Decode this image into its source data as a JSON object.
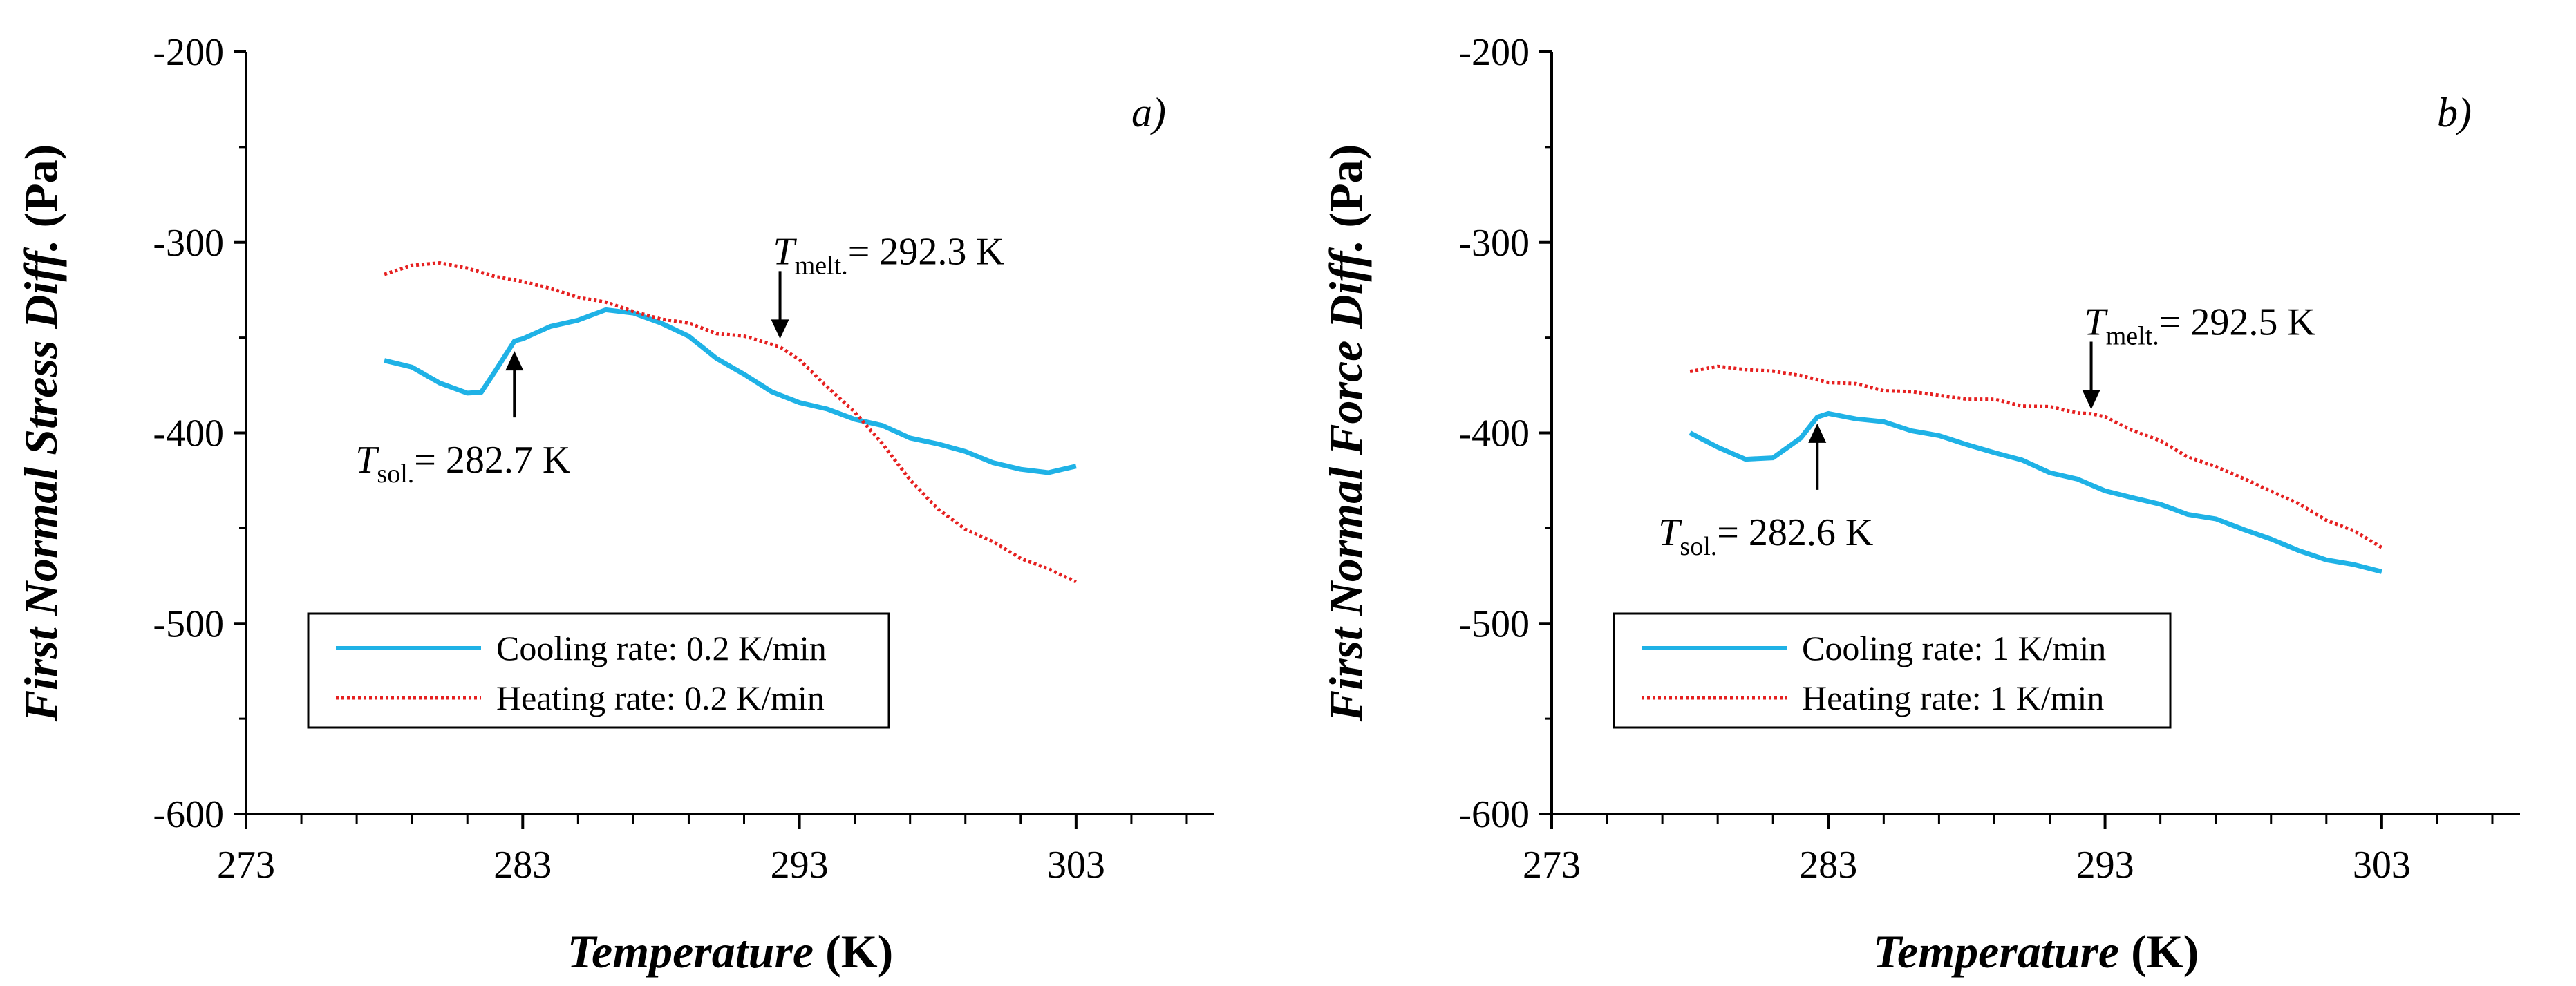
{
  "chart_data": [
    {
      "type": "line",
      "panel_label": "a)",
      "xlabel": "Temperature",
      "xlabel_unit": "(K)",
      "ylabel": "First Normal Stress Diff.",
      "ylabel_unit": "(Pa)",
      "xlim": [
        273,
        308
      ],
      "ylim": [
        -600,
        -200
      ],
      "xticks": [
        "273",
        "283",
        "293",
        "303"
      ],
      "yticks": [
        "-200",
        "-300",
        "-400",
        "-500",
        "-600"
      ],
      "grid": false,
      "legend_position": "bottom-left",
      "colors": {
        "cooling": "#1fb2e6",
        "heating": "#e62020"
      },
      "series": [
        {
          "name": "Cooling rate: 0.2 K/min",
          "style": "solid",
          "x": [
            278,
            279,
            280,
            281,
            281.5,
            282,
            282.7,
            283,
            284,
            285,
            286,
            287,
            288,
            289,
            290,
            291,
            292,
            293,
            294,
            295,
            296,
            297,
            298,
            299,
            300,
            301,
            302,
            303
          ],
          "y": [
            -362,
            -366,
            -373,
            -380,
            -378,
            -368,
            -352,
            -350,
            -345,
            -340,
            -336,
            -337,
            -342,
            -350,
            -360,
            -370,
            -378,
            -384,
            -388,
            -392,
            -397,
            -402,
            -406,
            -410,
            -415,
            -420,
            -420,
            -418
          ]
        },
        {
          "name": "Heating rate: 0.2 K/min",
          "style": "dotted",
          "x": [
            278,
            279,
            280,
            281,
            282,
            283,
            284,
            285,
            286,
            287,
            288,
            289,
            290,
            291,
            292,
            292.3,
            293,
            294,
            295,
            296,
            297,
            298,
            299,
            300,
            301,
            302,
            303
          ],
          "y": [
            -316,
            -313,
            -310,
            -314,
            -318,
            -320,
            -325,
            -328,
            -332,
            -336,
            -340,
            -343,
            -347,
            -350,
            -353,
            -355,
            -362,
            -375,
            -390,
            -405,
            -425,
            -440,
            -450,
            -458,
            -465,
            -472,
            -478
          ]
        }
      ],
      "annotations": [
        {
          "symbol": "T",
          "subscript": "melt.",
          "text": "= 292.3 K",
          "x": 292.3,
          "y": -355,
          "arrow": "down"
        },
        {
          "symbol": "T",
          "subscript": "sol.",
          "text": "= 282.7 K",
          "x": 282.7,
          "y": -352,
          "arrow": "up"
        }
      ]
    },
    {
      "type": "line",
      "panel_label": "b)",
      "xlabel": "Temperature",
      "xlabel_unit": "(K)",
      "ylabel": "First Normal Force Diff.",
      "ylabel_unit": "(Pa)",
      "xlim": [
        273,
        308
      ],
      "ylim": [
        -600,
        -200
      ],
      "xticks": [
        "273",
        "283",
        "293",
        "303"
      ],
      "yticks": [
        "-200",
        "-300",
        "-400",
        "-500",
        "-600"
      ],
      "grid": false,
      "legend_position": "bottom-left",
      "colors": {
        "cooling": "#1fb2e6",
        "heating": "#e62020"
      },
      "series": [
        {
          "name": "Cooling rate: 1 K/min",
          "style": "solid",
          "x": [
            278,
            279,
            280,
            281,
            282,
            282.6,
            283,
            284,
            285,
            286,
            287,
            288,
            289,
            290,
            291,
            292,
            293,
            294,
            295,
            296,
            297,
            298,
            299,
            300,
            301,
            302,
            303
          ],
          "y": [
            -400,
            -408,
            -413,
            -414,
            -402,
            -392,
            -390,
            -392,
            -395,
            -398,
            -402,
            -406,
            -410,
            -415,
            -420,
            -425,
            -430,
            -434,
            -438,
            -442,
            -446,
            -450,
            -456,
            -462,
            -466,
            -470,
            -472
          ]
        },
        {
          "name": "Heating rate: 1 K/min",
          "style": "dotted",
          "x": [
            278,
            279,
            280,
            281,
            282,
            283,
            284,
            285,
            286,
            287,
            288,
            289,
            290,
            291,
            292,
            292.5,
            293,
            294,
            295,
            296,
            297,
            298,
            299,
            300,
            301,
            302,
            303
          ],
          "y": [
            -367,
            -366,
            -366,
            -368,
            -370,
            -373,
            -375,
            -377,
            -379,
            -380,
            -382,
            -383,
            -385,
            -387,
            -389,
            -390,
            -392,
            -398,
            -405,
            -412,
            -418,
            -424,
            -430,
            -438,
            -445,
            -452,
            -460
          ]
        }
      ],
      "annotations": [
        {
          "symbol": "T",
          "subscript": "melt.",
          "text": "= 292.5 K",
          "x": 292.5,
          "y": -392,
          "arrow": "down"
        },
        {
          "symbol": "T",
          "subscript": "sol.",
          "text": "= 282.6 K",
          "x": 282.6,
          "y": -390,
          "arrow": "up"
        }
      ]
    }
  ]
}
